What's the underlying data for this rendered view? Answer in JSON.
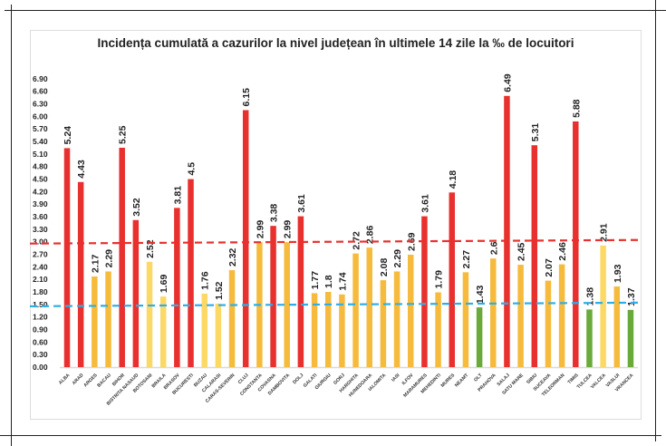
{
  "chart_data": {
    "type": "bar",
    "title": "Incidența cumulată a cazurilor la nivel județean în ultimele 14 zile la ‰ de locuitori",
    "xlabel": "",
    "ylabel": "",
    "ylim": [
      0,
      6.9
    ],
    "yticks": [
      "0.00",
      "0.30",
      "0.60",
      "0.90",
      "1.20",
      "1.50",
      "1.80",
      "2.10",
      "2.40",
      "2.70",
      "3.00",
      "3.30",
      "3.60",
      "3.90",
      "4.20",
      "4.50",
      "4.80",
      "5.10",
      "5.40",
      "5.70",
      "6.00",
      "6.30",
      "6.60",
      "6.90"
    ],
    "categories": [
      "ALBA",
      "ARAD",
      "ARGES",
      "BACAU",
      "BIHOR",
      "BISTRITA NASAUD",
      "BOTOSANI",
      "BRAILA",
      "BRASOV",
      "BUCURESTI",
      "BUZAU",
      "CALARASI",
      "CARAS-SEVERIN",
      "CLUJ",
      "CONSTANTA",
      "COVASNA",
      "DAMBOVITA",
      "DOLJ",
      "GALATI",
      "GIURGIU",
      "GORJ",
      "HARGHITA",
      "HUNEDOARA",
      "IALOMITA",
      "IASI",
      "ILFOV",
      "MARAMURES",
      "MEHEDINTI",
      "MURES",
      "NEAMT",
      "OLT",
      "PRAHOVA",
      "SALAJ",
      "SATU MARE",
      "SIBIU",
      "SUCEAVA",
      "TELEORMAN",
      "TIMIS",
      "TULCEA",
      "VALCEA",
      "VASLUI",
      "VRANCEA"
    ],
    "values": [
      5.24,
      4.43,
      2.17,
      2.29,
      5.25,
      3.52,
      2.52,
      1.69,
      3.81,
      4.5,
      1.76,
      1.52,
      2.32,
      6.15,
      2.99,
      3.38,
      2.99,
      3.61,
      1.77,
      1.8,
      1.74,
      2.72,
      2.86,
      2.08,
      2.29,
      2.69,
      3.61,
      1.79,
      4.18,
      2.27,
      1.43,
      2.6,
      6.49,
      2.45,
      5.31,
      2.07,
      2.46,
      5.88,
      1.38,
      2.91,
      1.93,
      1.37
    ],
    "value_labels": [
      "5.24",
      "4.43",
      "2.17",
      "2.29",
      "5.25",
      "3.52",
      "2.52",
      "1.69",
      "3.81",
      "4.5",
      "1.76",
      "1.52",
      "2.32",
      "6.15",
      "2.99",
      "3.38",
      "2.99",
      "3.61",
      "1.77",
      "1.8",
      "1.74",
      "2.72",
      "2.86",
      "2.08",
      "2.29",
      "2.69",
      "3.61",
      "1.79",
      "4.18",
      "2.27",
      "1.43",
      "2.6",
      "6.49",
      "2.45",
      "5.31",
      "2.07",
      "2.46",
      "5.88",
      "1.38",
      "2.91",
      "1.93",
      "1.37"
    ],
    "bar_colors": [
      "r",
      "r",
      "o",
      "o",
      "r",
      "r",
      "y",
      "y",
      "r",
      "r",
      "y",
      "y",
      "o",
      "r",
      "o",
      "r",
      "o",
      "r",
      "o",
      "o",
      "o",
      "o",
      "o",
      "o",
      "o",
      "o",
      "r",
      "o",
      "r",
      "o",
      "g",
      "o",
      "r",
      "o",
      "r",
      "o",
      "o",
      "r",
      "g",
      "y",
      "o",
      "g"
    ],
    "palette": {
      "r": "#e8312f",
      "o": "#f6bb3c",
      "y": "#fcd966",
      "g": "#6aaa3a"
    },
    "reference_lines": [
      {
        "value": 3.0,
        "color": "#e8312f",
        "style": "dashed"
      },
      {
        "value": 1.5,
        "color": "#2eaee8",
        "style": "dashed"
      }
    ],
    "grid": false,
    "legend": "none"
  }
}
